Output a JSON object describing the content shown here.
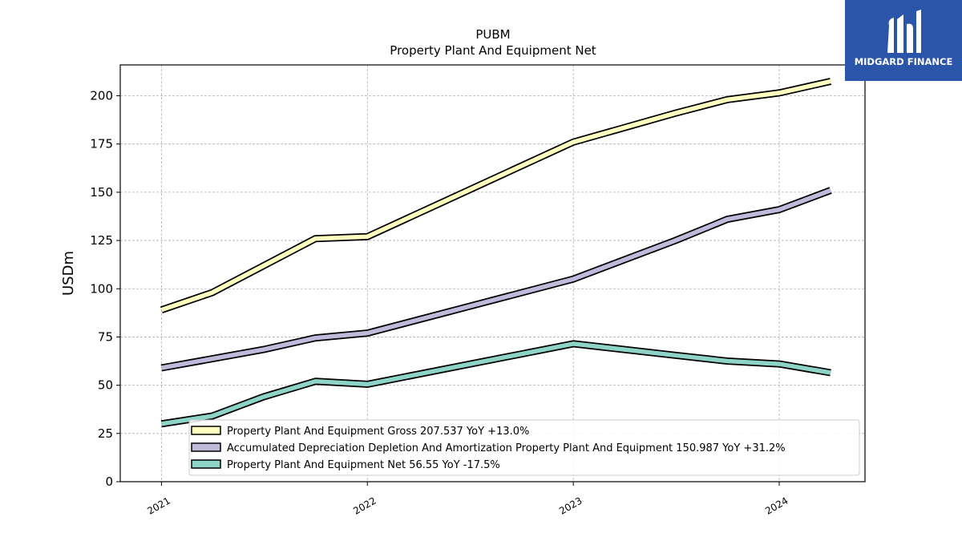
{
  "brand": {
    "name": "MIDGARD FINANCE",
    "background": "#2a55a8"
  },
  "chart_data": {
    "type": "line",
    "title": "PUBM",
    "subtitle": "Property Plant And Equipment Net",
    "ylabel": "USDm",
    "ylim": [
      0,
      216
    ],
    "yticks": [
      0,
      25,
      50,
      75,
      100,
      125,
      150,
      175,
      200
    ],
    "xticks": [
      "2021",
      "2022",
      "2023",
      "2024"
    ],
    "x_range": [
      "2020-10-20",
      "2024-06-01"
    ],
    "grid": true,
    "legend": "lower-center",
    "series": [
      {
        "name": "Property Plant And Equipment Gross",
        "legend_label": "Property Plant And Equipment Gross  207.537 YoY +13.0%",
        "color": "#ffffbf",
        "points": [
          [
            "2021-01-01",
            89
          ],
          [
            "2021-04-01",
            98
          ],
          [
            "2021-10-01",
            126
          ],
          [
            "2022-01-01",
            127
          ],
          [
            "2023-01-01",
            176
          ],
          [
            "2023-07-01",
            191
          ],
          [
            "2023-10-01",
            198
          ],
          [
            "2024-01-01",
            201.5
          ],
          [
            "2024-04-01",
            207.5
          ]
        ]
      },
      {
        "name": "Accumulated Depreciation Depletion And Amortization Property Plant And Equipment",
        "legend_label": "Accumulated Depreciation Depletion And Amortization Property Plant And Equipment  150.987 YoY +31.2%",
        "color": "#bebada",
        "points": [
          [
            "2021-01-01",
            59
          ],
          [
            "2021-07-01",
            68.5
          ],
          [
            "2021-10-01",
            74.5
          ],
          [
            "2022-01-01",
            77
          ],
          [
            "2023-01-01",
            105
          ],
          [
            "2023-07-01",
            125
          ],
          [
            "2023-10-01",
            136
          ],
          [
            "2024-01-01",
            141
          ],
          [
            "2024-04-01",
            151
          ]
        ]
      },
      {
        "name": "Property Plant And Equipment Net",
        "legend_label": "Property Plant And Equipment Net  56.55 YoY -17.5%",
        "color": "#8dd3c7",
        "points": [
          [
            "2021-01-01",
            30
          ],
          [
            "2021-04-01",
            34
          ],
          [
            "2021-07-01",
            44
          ],
          [
            "2021-10-01",
            52
          ],
          [
            "2022-01-01",
            50.5
          ],
          [
            "2023-01-01",
            71.5
          ],
          [
            "2023-07-01",
            65.5
          ],
          [
            "2023-10-01",
            62.5
          ],
          [
            "2024-01-01",
            61
          ],
          [
            "2024-04-01",
            56.5
          ]
        ]
      }
    ]
  }
}
